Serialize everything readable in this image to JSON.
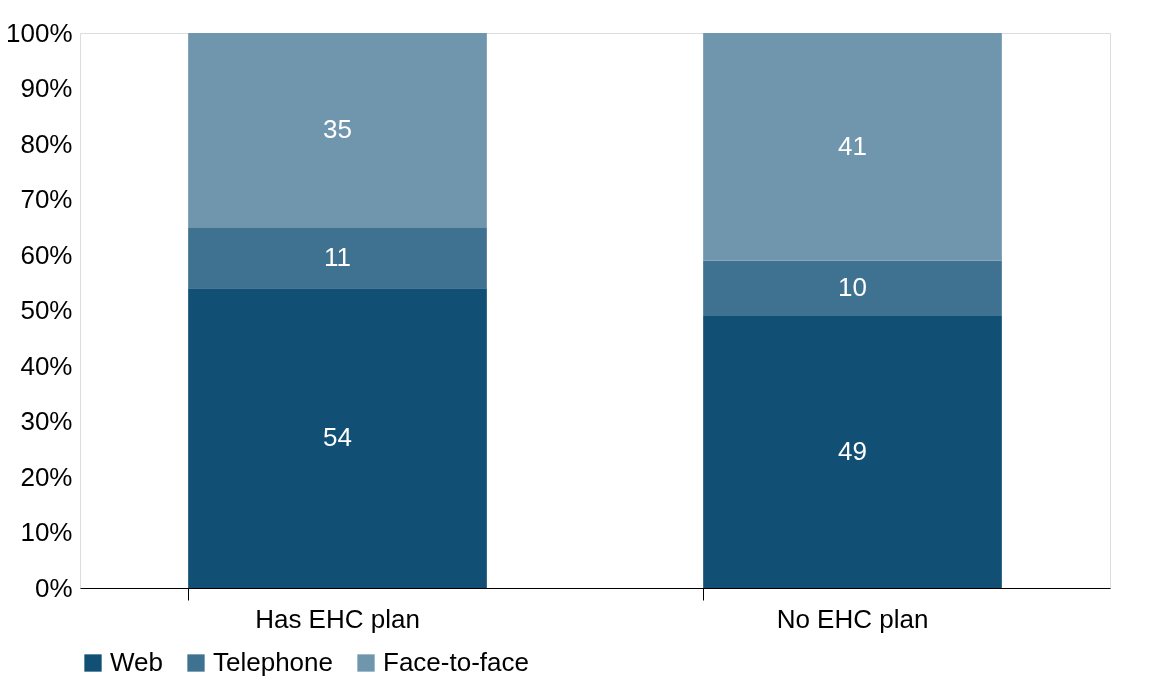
{
  "chart_data": {
    "type": "bar",
    "stacked": true,
    "categories": [
      "Has EHC plan",
      "No EHC plan"
    ],
    "series": [
      {
        "name": "Web",
        "color": "#114f74",
        "values": [
          54,
          49
        ]
      },
      {
        "name": "Telephone",
        "color": "#3f7190",
        "values": [
          11,
          10
        ]
      },
      {
        "name": "Face-to-face",
        "color": "#7096ae",
        "values": [
          35,
          41
        ]
      }
    ],
    "ylim": [
      0,
      100
    ],
    "yticks": [
      {
        "value": 0,
        "label": "0%"
      },
      {
        "value": 10,
        "label": "10%"
      },
      {
        "value": 20,
        "label": "20%"
      },
      {
        "value": 30,
        "label": "30%"
      },
      {
        "value": 40,
        "label": "40%"
      },
      {
        "value": 50,
        "label": "50%"
      },
      {
        "value": 60,
        "label": "60%"
      },
      {
        "value": 70,
        "label": "70%"
      },
      {
        "value": 80,
        "label": "80%"
      },
      {
        "value": 90,
        "label": "90%"
      },
      {
        "value": 100,
        "label": "100%"
      }
    ],
    "data_labels": true,
    "grid": false,
    "legend": "bottom"
  }
}
